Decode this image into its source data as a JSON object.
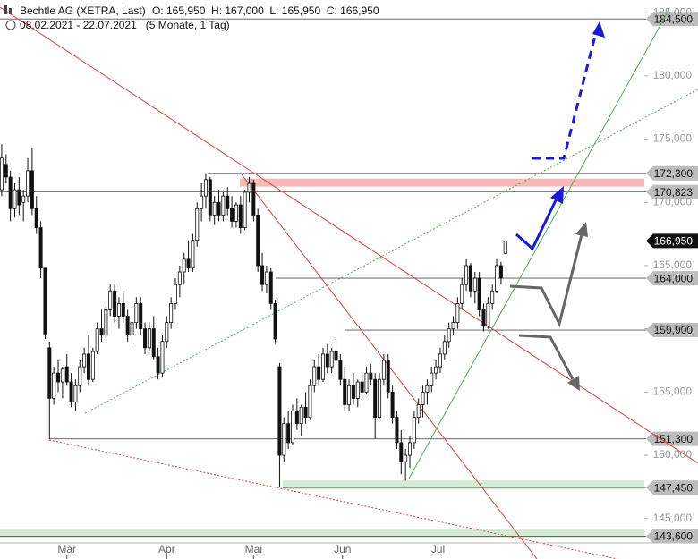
{
  "chart_data": {
    "type": "candlestick",
    "title": "Bechtle AG (XETRA, Last)",
    "quote": "O: 165,950  H: 167,000  L: 165,950  C: 166,950",
    "subtitle": "08.02.2021 - 22.07.2021   (5 Monate, 1 Tag)",
    "xlim": [
      -0.4,
      148
    ],
    "xticks": [
      {
        "value": 15,
        "label": "Mär"
      },
      {
        "value": 38,
        "label": "Apr"
      },
      {
        "value": 58,
        "label": "Mai"
      },
      {
        "value": 78.5,
        "label": "Jun"
      },
      {
        "value": 100.5,
        "label": "Jul"
      }
    ],
    "ylim": [
      141.8,
      186
    ],
    "yticks": [
      {
        "value": 145,
        "label": "145,000"
      },
      {
        "value": 150,
        "label": "150,000"
      },
      {
        "value": 155,
        "label": "155,000"
      },
      {
        "value": 160,
        "label": "160,000"
      },
      {
        "value": 165,
        "label": "165,000"
      },
      {
        "value": 170,
        "label": "170,000"
      },
      {
        "value": 175,
        "label": "175,000"
      },
      {
        "value": 180,
        "label": "180,000"
      },
      {
        "value": 185,
        "label": "185,000"
      }
    ],
    "levels": [
      {
        "value": 184.5,
        "label": "184,500"
      },
      {
        "value": 172.3,
        "label": "172,300"
      },
      {
        "value": 170.823,
        "label": "170,823"
      },
      {
        "value": 164,
        "label": "164,000"
      },
      {
        "value": 159.9,
        "label": "159,900"
      },
      {
        "value": 151.3,
        "label": "151,300"
      },
      {
        "value": 147.45,
        "label": "147,450"
      },
      {
        "value": 143.6,
        "label": "143,600"
      }
    ],
    "last": {
      "value": 166.95,
      "label": "166,950"
    },
    "ohlc": [
      [
        171,
        174.6,
        170.5,
        173.5
      ],
      [
        173,
        173.8,
        171.5,
        172
      ],
      [
        172,
        172.5,
        168.5,
        169.5
      ],
      [
        169.5,
        171.5,
        168.8,
        171
      ],
      [
        171,
        172,
        169,
        169.8
      ],
      [
        170,
        171,
        168.5,
        170.5
      ],
      [
        170.5,
        173.5,
        170,
        172.5
      ],
      [
        172.5,
        174.3,
        169,
        169.5
      ],
      [
        169.5,
        170.5,
        167.5,
        168
      ],
      [
        168,
        168.5,
        164,
        164.8
      ],
      [
        164.8,
        164.8,
        159.2,
        159.6
      ],
      [
        158.5,
        159,
        151.3,
        154.5
      ],
      [
        154.5,
        157,
        154,
        156.5
      ],
      [
        156.5,
        157.5,
        155,
        155.8
      ],
      [
        155.8,
        157,
        154.5,
        156.8
      ],
      [
        157,
        158,
        155.5,
        155.8
      ],
      [
        155.8,
        156.5,
        153.8,
        154.2
      ],
      [
        154.2,
        156,
        153.5,
        155.5
      ],
      [
        155.5,
        157.5,
        155,
        157
      ],
      [
        157,
        158.5,
        156.5,
        158
      ],
      [
        158,
        159.5,
        155.5,
        156
      ],
      [
        156,
        158.5,
        155.8,
        158.2
      ],
      [
        158.2,
        160.5,
        158,
        160
      ],
      [
        160,
        161.5,
        159,
        159.5
      ],
      [
        159.5,
        162,
        159.2,
        161.5
      ],
      [
        161.5,
        163.5,
        161,
        163
      ],
      [
        163,
        163.5,
        160.5,
        161
      ],
      [
        161,
        162.5,
        160,
        162
      ],
      [
        162,
        163,
        160.5,
        161
      ],
      [
        161,
        161.5,
        159,
        159.5
      ],
      [
        159.5,
        161,
        158.8,
        160.5
      ],
      [
        160.5,
        162.5,
        160,
        162
      ],
      [
        162,
        162.5,
        159.5,
        160
      ],
      [
        160,
        160.5,
        158,
        158.5
      ],
      [
        158.5,
        160.5,
        158.2,
        160
      ],
      [
        160,
        161,
        157.5,
        157.8
      ],
      [
        157.8,
        158.5,
        156,
        156.5
      ],
      [
        156.5,
        159.5,
        156.2,
        159
      ],
      [
        159,
        161,
        158.5,
        160.5
      ],
      [
        160.5,
        162.5,
        160,
        162
      ],
      [
        162,
        164,
        161.5,
        163.5
      ],
      [
        163.5,
        165,
        162.5,
        164.5
      ],
      [
        164.5,
        166,
        163.5,
        165.5
      ],
      [
        165.5,
        167,
        164.5,
        164.8
      ],
      [
        164.8,
        167.5,
        164.5,
        167
      ],
      [
        167,
        170,
        166.5,
        169.5
      ],
      [
        169.5,
        171.5,
        168.5,
        170.5
      ],
      [
        170.5,
        172.3,
        169.5,
        171.8
      ],
      [
        171.8,
        172,
        168.5,
        169
      ],
      [
        169,
        170.5,
        168.2,
        170
      ],
      [
        170,
        171,
        168.5,
        169
      ],
      [
        169,
        170.8,
        168.5,
        170.5
      ],
      [
        170.5,
        171.2,
        169,
        169.5
      ],
      [
        169.5,
        170.5,
        168,
        168.5
      ],
      [
        168.5,
        170,
        168,
        169.8
      ],
      [
        169.8,
        170.5,
        167.5,
        168
      ],
      [
        168,
        171,
        167.8,
        170.8
      ],
      [
        170.8,
        172,
        170,
        171.5
      ],
      [
        171.5,
        171.8,
        168.5,
        169
      ],
      [
        169,
        169.5,
        164.5,
        165
      ],
      [
        165,
        166,
        163,
        163.5
      ],
      [
        163.5,
        165,
        162.8,
        164.5
      ],
      [
        164.5,
        164.8,
        161.5,
        162
      ],
      [
        162,
        162.3,
        158.8,
        159.2
      ],
      [
        157,
        157.3,
        147.45,
        150
      ],
      [
        150,
        153,
        149.5,
        152.5
      ],
      [
        152.5,
        153.5,
        150.5,
        151
      ],
      [
        151,
        154,
        150.8,
        153.5
      ],
      [
        153.5,
        154.5,
        152,
        152.5
      ],
      [
        152.5,
        154,
        151.5,
        153.8
      ],
      [
        153.8,
        155,
        152.5,
        153
      ],
      [
        153,
        156,
        152.8,
        155.5
      ],
      [
        155.5,
        157.5,
        155,
        157
      ],
      [
        157,
        158,
        155.5,
        156
      ],
      [
        156,
        158.5,
        155.8,
        158
      ],
      [
        158,
        158.8,
        156.5,
        157
      ],
      [
        157,
        158.5,
        156.5,
        158.2
      ],
      [
        158.2,
        159.2,
        157,
        157.5
      ],
      [
        157.5,
        158,
        155.5,
        156
      ],
      [
        156,
        157,
        153.5,
        154
      ],
      [
        154,
        156,
        153.5,
        155.5
      ],
      [
        155.5,
        156.5,
        154,
        154.5
      ],
      [
        154.5,
        156,
        153.8,
        155.8
      ],
      [
        155.8,
        156.5,
        154.5,
        155
      ],
      [
        155,
        157,
        154.8,
        156.5
      ],
      [
        156.5,
        157.2,
        155.5,
        156
      ],
      [
        156,
        156.5,
        151.3,
        153
      ],
      [
        153,
        156.5,
        152.8,
        156
      ],
      [
        156,
        158,
        155.5,
        157.5
      ],
      [
        157.5,
        158,
        154.5,
        155
      ],
      [
        155,
        155.5,
        152.5,
        153
      ],
      [
        153,
        153.5,
        150.5,
        151
      ],
      [
        151,
        152,
        148.5,
        149.5
      ],
      [
        149.5,
        150.5,
        148,
        150
      ],
      [
        150,
        151.5,
        149,
        151
      ],
      [
        151,
        153.5,
        150.5,
        153
      ],
      [
        153,
        154.5,
        152.5,
        154
      ],
      [
        154,
        155.5,
        153,
        155
      ],
      [
        155,
        156,
        154,
        155.5
      ],
      [
        155.5,
        157,
        155,
        156.5
      ],
      [
        156.5,
        157.5,
        156,
        157
      ],
      [
        157,
        158.5,
        156.5,
        158
      ],
      [
        158,
        159.5,
        157.5,
        159
      ],
      [
        159,
        160.5,
        158.5,
        160
      ],
      [
        160,
        161,
        159.5,
        160.5
      ],
      [
        160.5,
        162.5,
        160,
        162
      ],
      [
        162,
        164,
        161.5,
        163.5
      ],
      [
        163.5,
        165.5,
        163,
        165
      ],
      [
        165,
        165.2,
        162.5,
        163
      ],
      [
        163,
        164.5,
        162,
        164
      ],
      [
        164,
        164.5,
        161,
        161.5
      ],
      [
        161.5,
        162,
        159.8,
        160.2
      ],
      [
        160.2,
        162.5,
        160,
        162
      ],
      [
        162,
        163.5,
        161.5,
        163
      ],
      [
        163,
        165.5,
        162.8,
        165
      ],
      [
        165,
        165.3,
        163.5,
        164
      ],
      [
        165.95,
        167,
        165.95,
        166.95
      ]
    ]
  }
}
